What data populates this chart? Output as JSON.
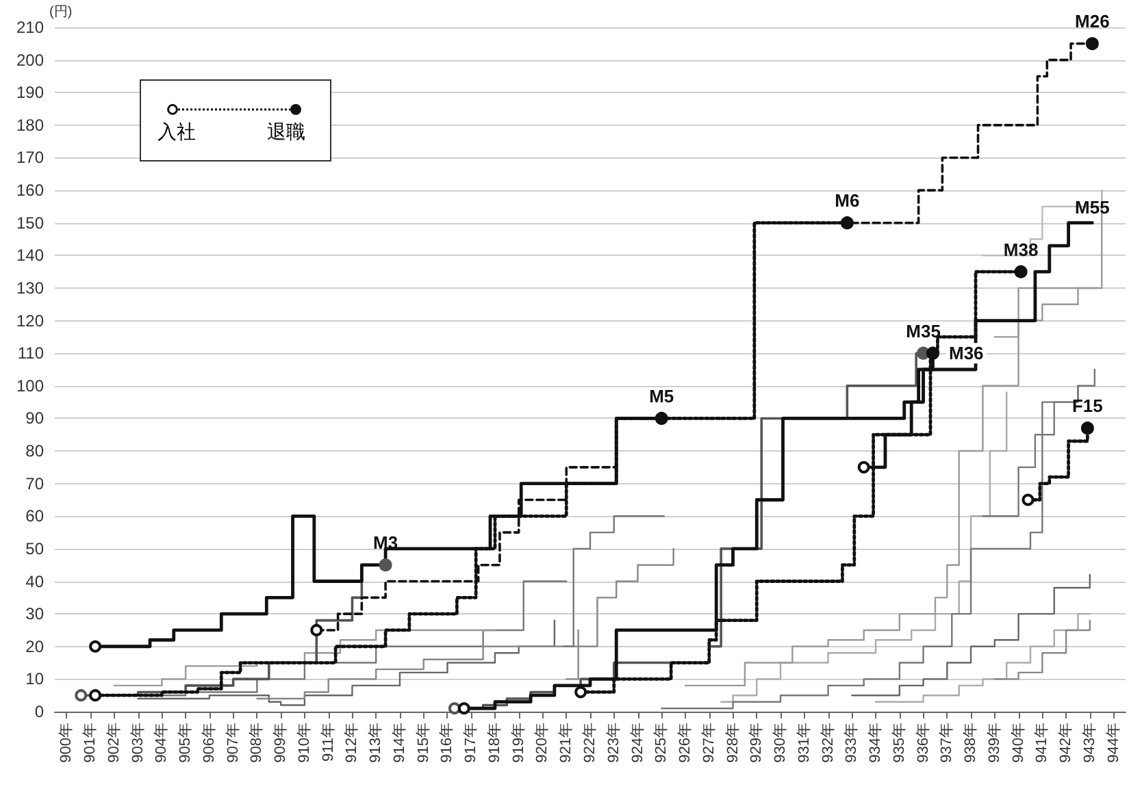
{
  "chart_data": {
    "type": "step",
    "ylabel": "(円)",
    "annotations": [
      "入社",
      "退職"
    ],
    "grid": "y",
    "xlim": [
      899.5,
      944.5
    ],
    "ylim": [
      0,
      210
    ],
    "yticks": [
      0,
      10,
      20,
      30,
      40,
      50,
      60,
      70,
      80,
      90,
      100,
      110,
      120,
      130,
      140,
      150,
      160,
      170,
      180,
      190,
      200,
      210
    ],
    "xticks": [
      {
        "value": 900,
        "label": "900年"
      },
      {
        "value": 901,
        "label": "901年"
      },
      {
        "value": 902,
        "label": "902年"
      },
      {
        "value": 903,
        "label": "903年"
      },
      {
        "value": 904,
        "label": "904年"
      },
      {
        "value": 905,
        "label": "905年"
      },
      {
        "value": 906,
        "label": "906年"
      },
      {
        "value": 907,
        "label": "907年"
      },
      {
        "value": 908,
        "label": "908年"
      },
      {
        "value": 909,
        "label": "909年"
      },
      {
        "value": 910,
        "label": "910年"
      },
      {
        "value": 911,
        "label": "911年"
      },
      {
        "value": 912,
        "label": "912年"
      },
      {
        "value": 913,
        "label": "913年"
      },
      {
        "value": 914,
        "label": "914年"
      },
      {
        "value": 915,
        "label": "915年"
      },
      {
        "value": 916,
        "label": "916年"
      },
      {
        "value": 917,
        "label": "917年"
      },
      {
        "value": 918,
        "label": "918年"
      },
      {
        "value": 919,
        "label": "919年"
      },
      {
        "value": 920,
        "label": "920年"
      },
      {
        "value": 921,
        "label": "921年"
      },
      {
        "value": 922,
        "label": "922年"
      },
      {
        "value": 923,
        "label": "923年"
      },
      {
        "value": 924,
        "label": "924年"
      },
      {
        "value": 925,
        "label": "925年"
      },
      {
        "value": 926,
        "label": "926年"
      },
      {
        "value": 927,
        "label": "927年"
      },
      {
        "value": 928,
        "label": "928年"
      },
      {
        "value": 929,
        "label": "929年"
      },
      {
        "value": 930,
        "label": "930年"
      },
      {
        "value": 931,
        "label": "931年"
      },
      {
        "value": 932,
        "label": "932年"
      },
      {
        "value": 933,
        "label": "933年"
      },
      {
        "value": 934,
        "label": "934年"
      },
      {
        "value": 935,
        "label": "935年"
      },
      {
        "value": 936,
        "label": "936年"
      },
      {
        "value": 937,
        "label": "937年"
      },
      {
        "value": 938,
        "label": "938年"
      },
      {
        "value": 939,
        "label": "939年"
      },
      {
        "value": 940,
        "label": "940年"
      },
      {
        "value": 941,
        "label": "941年"
      },
      {
        "value": 942,
        "label": "942年"
      },
      {
        "value": 943,
        "label": "943年"
      },
      {
        "value": 944,
        "label": "944年"
      }
    ],
    "series": [
      {
        "color": "#777777",
        "x": [
          902,
          905,
          908,
          910,
          913,
          917.5,
          919.2,
          921
        ],
        "values": [
          5,
          6,
          10,
          15,
          20,
          25,
          40,
          40
        ]
      },
      {
        "color": "#999999",
        "x": [
          902,
          904,
          905,
          908,
          910,
          911.5,
          913,
          918
        ],
        "values": [
          8,
          10,
          14,
          15,
          18,
          22,
          25,
          25
        ]
      },
      {
        "color": "#666666",
        "x": [
          903,
          906,
          908.5,
          909,
          910,
          912,
          914,
          916,
          918,
          919,
          920.5
        ],
        "values": [
          4,
          5,
          3,
          2,
          5,
          8,
          12,
          15,
          18,
          20,
          28
        ]
      },
      {
        "color": "#888888",
        "x": [
          908,
          910,
          911,
          913,
          915,
          917.5,
          920,
          921.5
        ],
        "values": [
          4,
          6,
          10,
          13,
          16,
          20,
          20,
          25
        ]
      },
      {
        "color": "#777777",
        "x": [
          920.9,
          921.3,
          922,
          923,
          925.1
        ],
        "values": [
          20,
          50,
          55,
          60,
          60
        ]
      },
      {
        "color": "#888888",
        "x": [
          921,
          921.5,
          922.3,
          923.1,
          924,
          925.5
        ],
        "values": [
          10,
          20,
          35,
          40,
          45,
          50
        ]
      },
      {
        "color": "#aaaaaa",
        "x": [
          927.5,
          928,
          929,
          930,
          932,
          934,
          935.5,
          936.5,
          937.5,
          938,
          938.8,
          939.5
        ],
        "values": [
          3,
          5,
          10,
          15,
          18,
          22,
          25,
          30,
          40,
          60,
          80,
          98
        ]
      },
      {
        "color": "#999999",
        "x": [
          926,
          928.5,
          930.5,
          932,
          933.5,
          935,
          936.5,
          937,
          937.5,
          938.5,
          940,
          943.5
        ],
        "values": [
          8,
          15,
          20,
          22,
          25,
          30,
          35,
          45,
          80,
          100,
          130,
          160
        ]
      },
      {
        "color": "#777777",
        "x": [
          925,
          928,
          930,
          932,
          933.5,
          935,
          936,
          937.2,
          938,
          940.5,
          941,
          942.5
        ],
        "values": [
          1,
          3,
          5,
          8,
          10,
          15,
          20,
          30,
          50,
          55,
          95,
          100
        ]
      },
      {
        "color": "#666666",
        "x": [
          933,
          935,
          936,
          937,
          938,
          939,
          940,
          941.5,
          943
        ],
        "values": [
          5,
          8,
          10,
          15,
          20,
          22,
          30,
          38,
          42
        ]
      },
      {
        "color": "#aaaaaa",
        "x": [
          934,
          936,
          937.5,
          938.5,
          939.5,
          940.5,
          941.5,
          942.5,
          943
        ],
        "values": [
          3,
          5,
          8,
          10,
          15,
          20,
          25,
          30,
          30
        ]
      },
      {
        "color": "#888888",
        "x": [
          939,
          940,
          941,
          942,
          943
        ],
        "values": [
          10,
          12,
          18,
          25,
          28
        ]
      },
      {
        "color": "#bbbbbb",
        "x": [
          938.5,
          940.5,
          941,
          943.5
        ],
        "values": [
          140,
          145,
          155,
          160
        ]
      },
      {
        "color": "#999999",
        "x": [
          939,
          940,
          941,
          942.5,
          943.3
        ],
        "values": [
          115,
          120,
          125,
          130,
          130
        ]
      },
      {
        "color": "#777777",
        "x": [
          938.5,
          940,
          940.7,
          941.5,
          942.5,
          943.2
        ],
        "values": [
          60,
          75,
          85,
          95,
          100,
          105
        ]
      },
      {
        "name": "M3",
        "color": "#555555",
        "line_style": "solid",
        "x": [
          900.6,
          903,
          905,
          907,
          908.5,
          910.5,
          912,
          912.4,
          913.4
        ],
        "values": [
          5,
          6,
          8,
          10,
          15,
          28,
          35,
          45,
          45
        ]
      },
      {
        "name": "M5",
        "color": "#111111",
        "line_style": "solid",
        "x": [
          901.2,
          903.5,
          904.5,
          906.5,
          908.4,
          909.5,
          910.4,
          912.4,
          913.4,
          917.8,
          919.1,
          923.1,
          925.0
        ],
        "values": [
          20,
          22,
          25,
          30,
          35,
          60,
          40,
          45,
          50,
          60,
          70,
          90,
          90
        ]
      },
      {
        "name": "M6",
        "color": "#111111",
        "line_style": "dotted",
        "x": [
          901.2,
          904,
          905.5,
          906.5,
          907.3,
          911.3,
          913.4,
          914.4,
          916.4,
          917.2,
          918,
          921,
          923.1,
          928.9,
          932.8
        ],
        "values": [
          5,
          6,
          7,
          12,
          15,
          20,
          25,
          30,
          35,
          50,
          60,
          70,
          90,
          150,
          150
        ]
      },
      {
        "name": "M26",
        "color": "#111111",
        "line_style": "dashed",
        "x": [
          910.5,
          911.4,
          912.4,
          913.4,
          917.3,
          918.2,
          919.0,
          921.0,
          923.1,
          928.9,
          935.8,
          936.8,
          938.3,
          940.8,
          941.2,
          942.2,
          943.1
        ],
        "values": [
          25,
          30,
          35,
          40,
          45,
          55,
          65,
          75,
          90,
          150,
          160,
          170,
          180,
          195,
          200,
          205,
          205
        ]
      },
      {
        "name": "M35",
        "color": "#555555",
        "line_style": "solid",
        "x": [
          916.3,
          917.5,
          918.5,
          919.5,
          920.5,
          921.6,
          923,
          927,
          927.5,
          929.2,
          932.8,
          935.7,
          936.0
        ],
        "values": [
          1,
          2,
          4,
          6,
          8,
          10,
          15,
          20,
          50,
          90,
          100,
          110,
          110
        ]
      },
      {
        "name": "M36",
        "color": "#111111",
        "line_style": "solid",
        "x": [
          916.7,
          918,
          919.5,
          920.5,
          922,
          923.1,
          927.3,
          928,
          929,
          930.1,
          935.2,
          936,
          936.4
        ],
        "values": [
          1,
          3,
          5,
          8,
          10,
          25,
          45,
          50,
          65,
          90,
          95,
          105,
          110
        ]
      },
      {
        "name": "M38",
        "color": "#111111",
        "line_style": "dotted",
        "x": [
          921.6,
          923,
          925.4,
          927,
          927.3,
          929,
          932.6,
          933.1,
          933.9,
          936.3,
          936.6,
          938.2,
          940.1
        ],
        "values": [
          6,
          10,
          15,
          22,
          28,
          40,
          45,
          60,
          85,
          110,
          115,
          135,
          135
        ]
      },
      {
        "name": "M55",
        "color": "#111111",
        "line_style": "solid",
        "marker": "none",
        "x": [
          933.5,
          934.4,
          935.5,
          935.8,
          938.2,
          940.7,
          941.3,
          942.1,
          943.1
        ],
        "values": [
          75,
          85,
          95,
          105,
          120,
          135,
          143,
          150,
          150
        ]
      },
      {
        "name": "F15",
        "color": "#111111",
        "line_style": "dotted",
        "x": [
          940.4,
          940.9,
          941.3,
          942.1,
          942.9
        ],
        "values": [
          65,
          70,
          72,
          83,
          87
        ]
      }
    ]
  }
}
